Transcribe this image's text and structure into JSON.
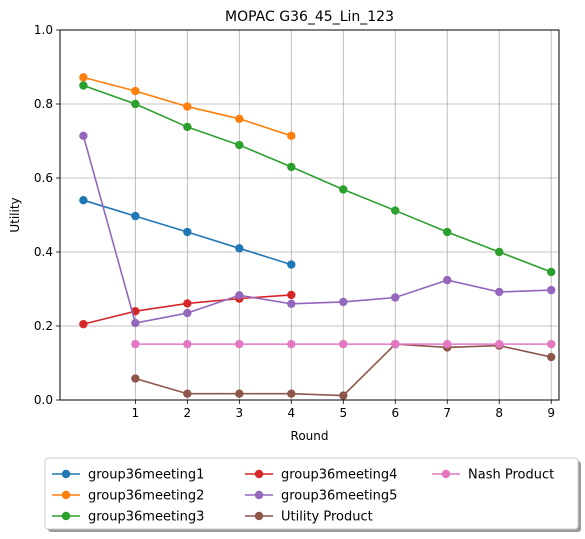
{
  "chart_data": {
    "type": "line",
    "title": "MOPAC G36_45_Lin_123",
    "xlabel": "Round",
    "ylabel": "Utility",
    "xlim": [
      -0.45,
      9.15
    ],
    "ylim": [
      0.0,
      1.0
    ],
    "xticks": [
      1,
      2,
      3,
      4,
      5,
      6,
      7,
      8,
      9
    ],
    "xtick_labels": [
      "1",
      "2",
      "3",
      "4",
      "5",
      "6",
      "7",
      "8",
      "9"
    ],
    "yticks": [
      0.0,
      0.2,
      0.4,
      0.6,
      0.8,
      1.0
    ],
    "ytick_labels": [
      "0.0",
      "0.2",
      "0.4",
      "0.6",
      "0.8",
      "1.0"
    ],
    "grid": true,
    "legend_placement": "bottom-center",
    "series": [
      {
        "name": "group36meeting1",
        "color": "#1f77b4",
        "x": [
          0,
          1,
          2,
          3,
          4
        ],
        "y": [
          0.54,
          0.497,
          0.454,
          0.41,
          0.366
        ]
      },
      {
        "name": "group36meeting2",
        "color": "#ff7f0e",
        "x": [
          0,
          1,
          2,
          3,
          4
        ],
        "y": [
          0.872,
          0.835,
          0.793,
          0.76,
          0.714
        ]
      },
      {
        "name": "group36meeting3",
        "color": "#2ca02c",
        "x": [
          0,
          1,
          2,
          3,
          4,
          5,
          6,
          7,
          8,
          9
        ],
        "y": [
          0.85,
          0.8,
          0.738,
          0.689,
          0.63,
          0.569,
          0.512,
          0.454,
          0.4,
          0.346
        ]
      },
      {
        "name": "group36meeting4",
        "color": "#d62728",
        "x": [
          0,
          1,
          2,
          3,
          4
        ],
        "y": [
          0.205,
          0.24,
          0.261,
          0.274,
          0.284
        ]
      },
      {
        "name": "group36meeting5",
        "color": "#9467bd",
        "x": [
          0,
          1,
          2,
          3,
          4,
          5,
          6,
          7,
          8,
          9
        ],
        "y": [
          0.714,
          0.208,
          0.235,
          0.283,
          0.26,
          0.265,
          0.277,
          0.324,
          0.292,
          0.297
        ]
      },
      {
        "name": "Utility Product",
        "color": "#8c564b",
        "x": [
          1,
          2,
          3,
          4,
          5,
          6,
          7,
          8,
          9
        ],
        "y": [
          0.058,
          0.017,
          0.017,
          0.017,
          0.012,
          0.151,
          0.142,
          0.147,
          0.116
        ]
      },
      {
        "name": "Nash Product",
        "color": "#e377c2",
        "x": [
          1,
          2,
          3,
          4,
          5,
          6,
          7,
          8,
          9
        ],
        "y": [
          0.151,
          0.151,
          0.151,
          0.151,
          0.151,
          0.151,
          0.151,
          0.151,
          0.151
        ]
      }
    ]
  }
}
